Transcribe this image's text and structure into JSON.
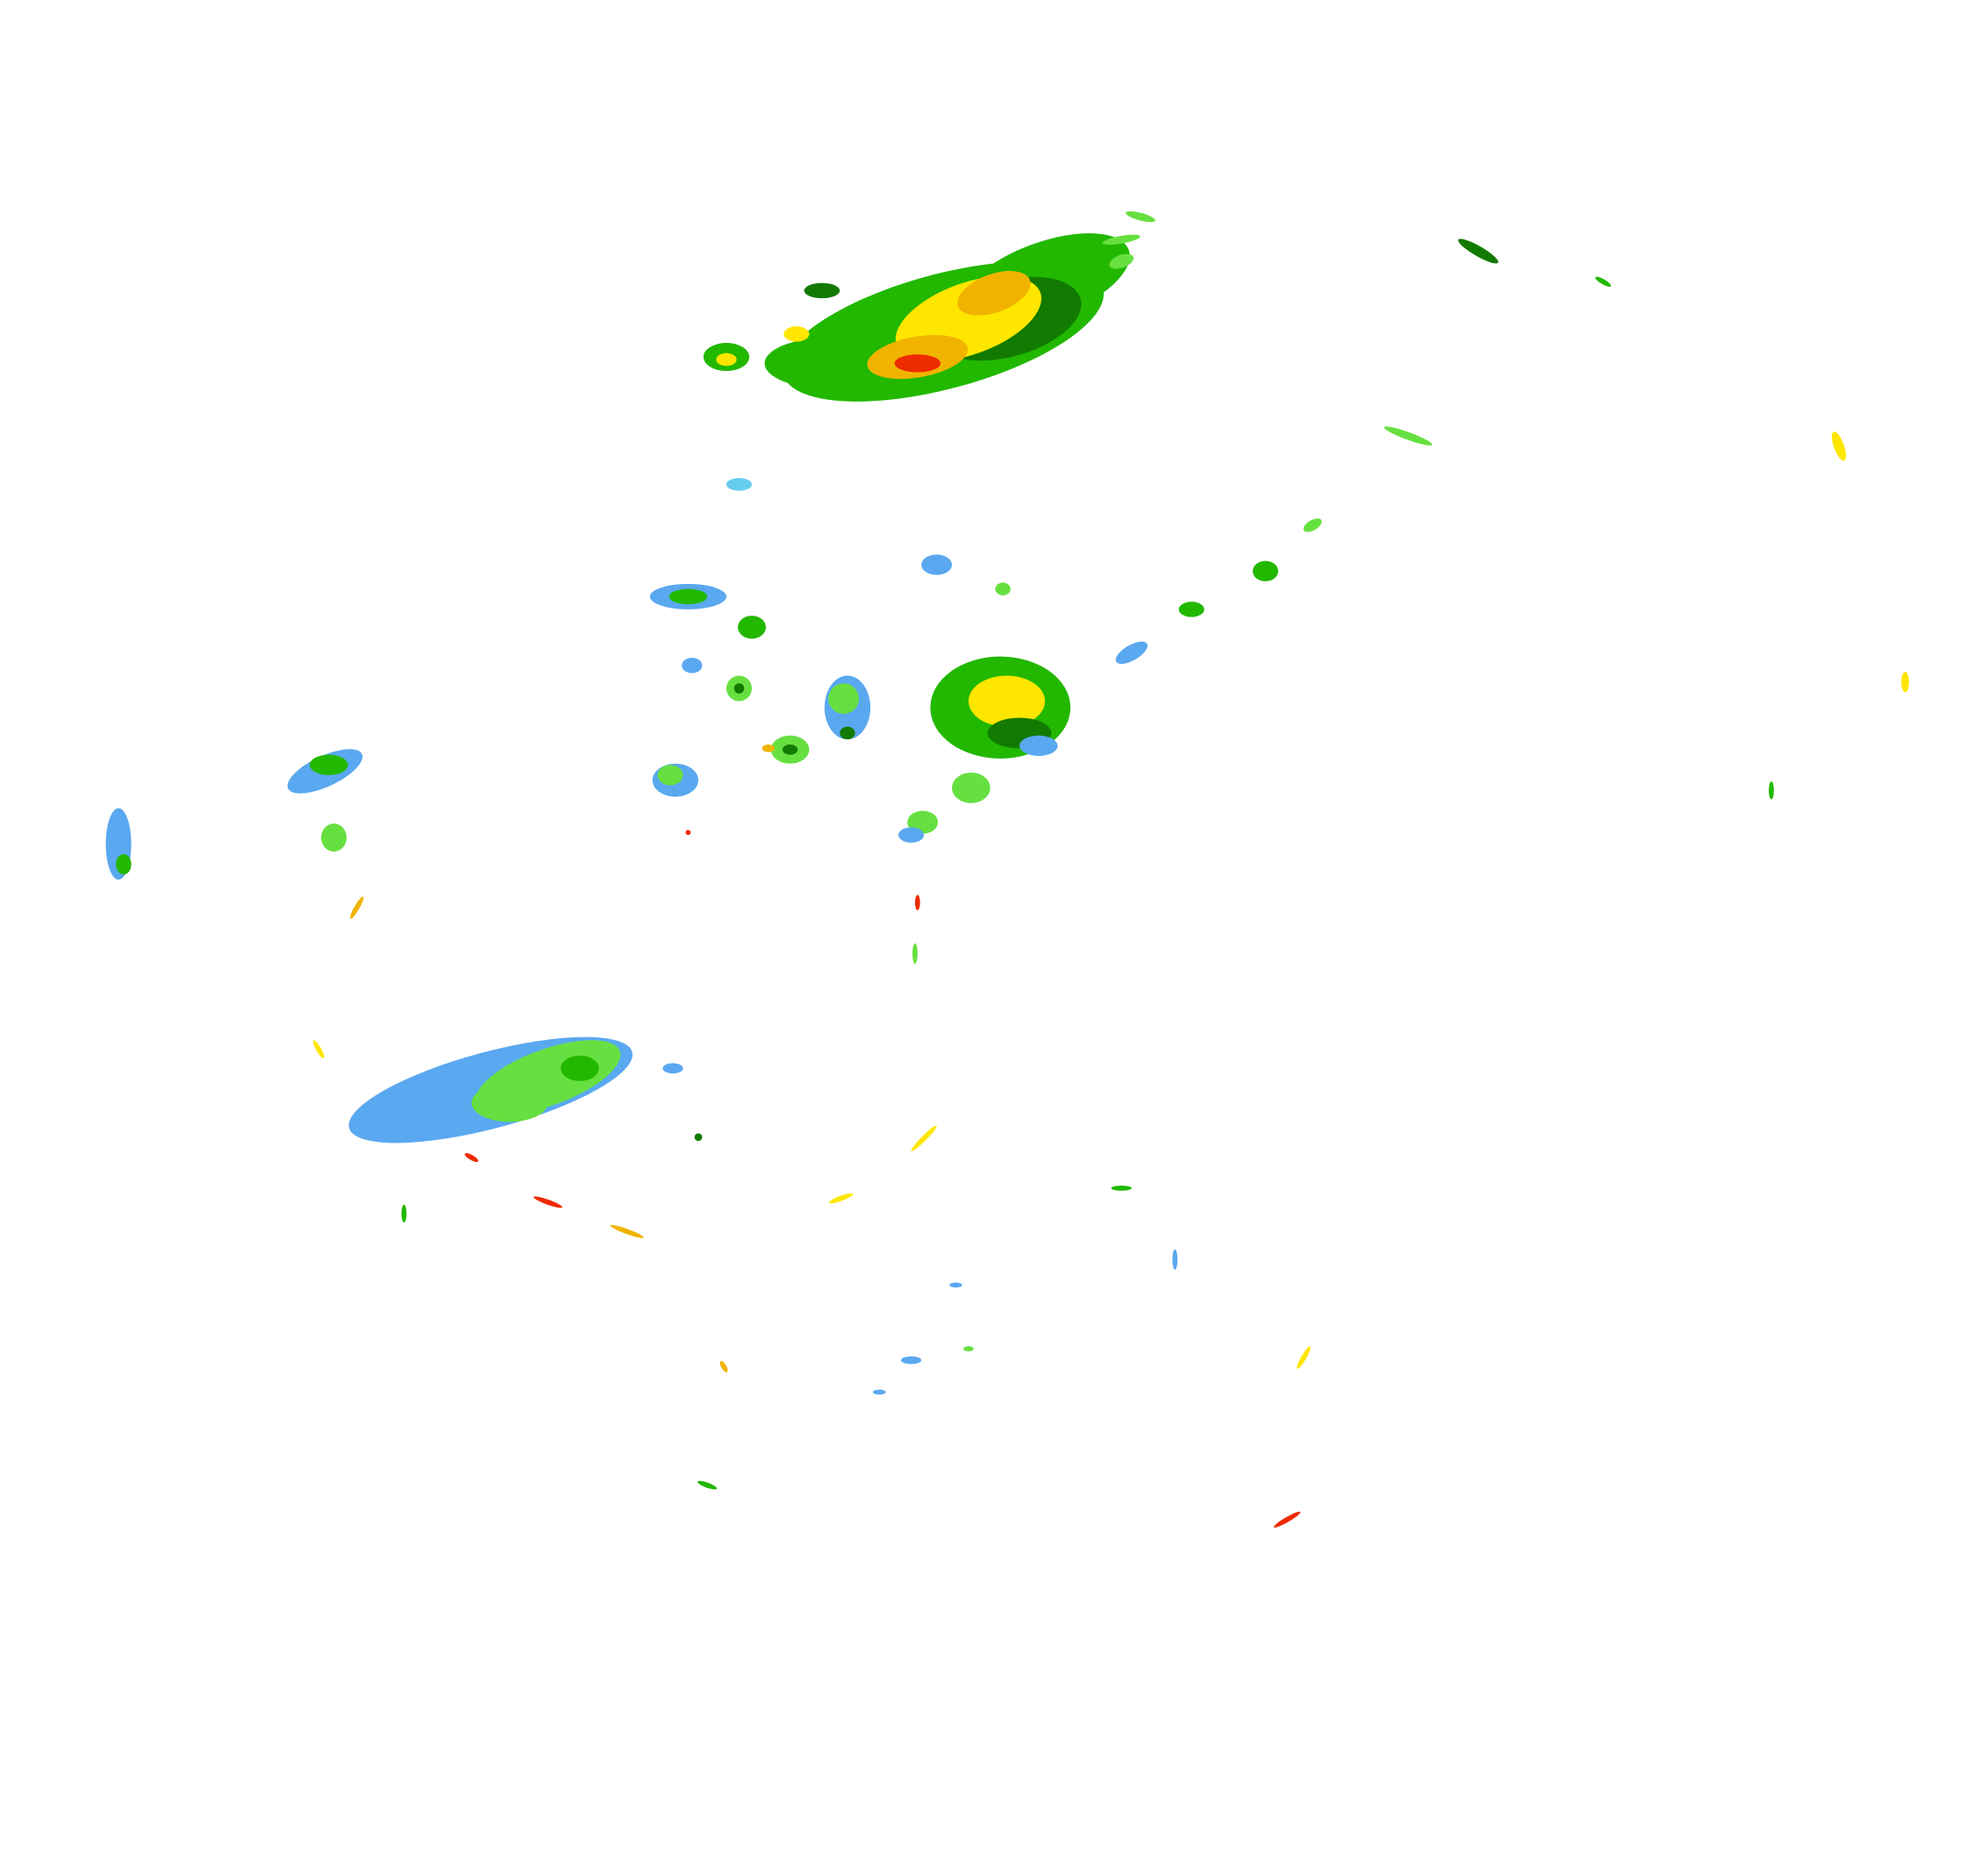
{
  "map": {
    "type": "radar-reflectivity-overlay",
    "background": "#ffffff",
    "palette": {
      "light_blue": "#5aa8f0",
      "cyan": "#66ccee",
      "light_green": "#66e040",
      "green": "#22b800",
      "dark_green": "#127a00",
      "yellow": "#ffe600",
      "orange": "#f0b400",
      "red": "#ee2a00"
    }
  }
}
